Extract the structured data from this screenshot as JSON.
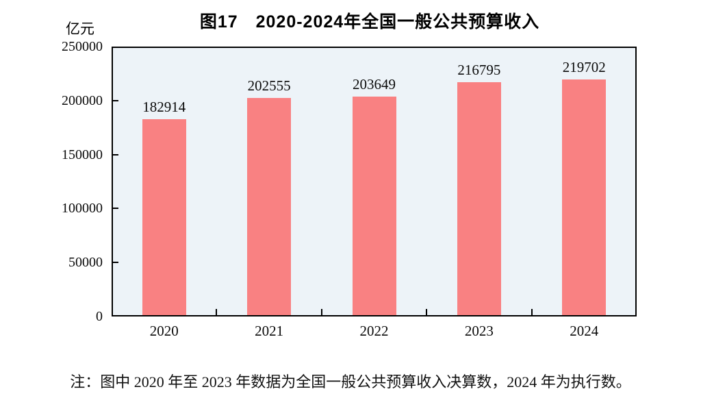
{
  "note": "注：图中 2020 年至 2023 年数据为全国一般公共预算收入决算数，2024 年为执行数。",
  "chart_data": {
    "type": "bar",
    "title": "图17　2020-2024年全国一般公共预算收入",
    "unit_label": "亿元",
    "xlabel": "",
    "ylabel": "亿元",
    "categories": [
      "2020",
      "2021",
      "2022",
      "2023",
      "2024"
    ],
    "values": [
      182914,
      202555,
      203649,
      216795,
      219702
    ],
    "data_labels": [
      "182914",
      "202555",
      "203649",
      "216795",
      "219702"
    ],
    "ylim": [
      0,
      250000
    ],
    "y_ticks": [
      0,
      50000,
      100000,
      150000,
      200000,
      250000
    ],
    "grid": false,
    "legend_position": "none",
    "bar_color": "#F98182",
    "plot_background": "#EDF3F8",
    "border_color": "#000000"
  }
}
